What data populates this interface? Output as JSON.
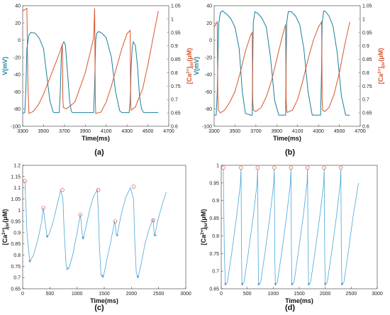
{
  "colors": {
    "voltage": "#1a7f9a",
    "calcium": "#d9542b",
    "ca_line": "#4aa6d8",
    "peak": "#e05050",
    "trough": "#2a5fd0",
    "axis": "#333333"
  },
  "panel_labels": [
    "(a)",
    "(b)",
    "(c)",
    "(d)"
  ],
  "chart_data": [
    {
      "type": "line",
      "xlabel": "Time(ms)",
      "ylabel_left": "V(mV)",
      "ylabel_right_parts": {
        "base": "[Ca",
        "sup": "2+",
        "mid": "]",
        "sub": "jsr",
        "unit": "(μM)"
      },
      "xlim": [
        3300,
        4700
      ],
      "ylim_left": [
        -100,
        40
      ],
      "ylim_right": [
        0.6,
        1.05
      ],
      "xticks": [
        3300,
        3500,
        3700,
        3900,
        4100,
        4300,
        4500,
        4700
      ],
      "yticks_left": [
        -100,
        -80,
        -60,
        -40,
        -20,
        0,
        20,
        40
      ],
      "yticks_right": [
        0.6,
        0.65,
        0.7,
        0.75,
        0.8,
        0.85,
        0.9,
        0.95,
        1,
        1.05
      ],
      "ytick_labels_right": [
        "0.6",
        "0.65",
        "0.7",
        "0.75",
        "0.8",
        "0.85",
        "0.9",
        "0.95",
        "1",
        "1.05"
      ],
      "series": [
        {
          "axis": "left",
          "x": [
            3300,
            3320,
            3330,
            3340,
            3360,
            3380,
            3420,
            3460,
            3500,
            3530,
            3560,
            3590,
            3600,
            3620,
            3650,
            3660,
            3670,
            3680,
            3695,
            3710,
            3725,
            3750,
            3765,
            3775,
            3785,
            3800,
            3830,
            3900,
            3950,
            3980,
            3990,
            4000,
            4010,
            4030,
            4060,
            4100,
            4150,
            4190,
            4230,
            4250,
            4290,
            4300,
            4320,
            4330,
            4340,
            4350,
            4360,
            4380,
            4400,
            4420,
            4440,
            4460,
            4480,
            4500,
            4550,
            4600
          ],
          "y": [
            -85,
            -84,
            -60,
            -10,
            6,
            9,
            8,
            2,
            -10,
            -40,
            -70,
            -83,
            -84,
            -84,
            -84,
            -60,
            -20,
            -5,
            -2,
            -6,
            -30,
            -70,
            -82,
            -84,
            -84,
            -84,
            -84,
            -84,
            -84,
            -84,
            -50,
            0,
            8,
            10,
            8,
            3,
            -20,
            -60,
            -82,
            -84,
            -84,
            -84,
            -84,
            -70,
            -30,
            -8,
            -2,
            -6,
            -30,
            -65,
            -80,
            -84,
            -84,
            -84,
            -84,
            -84
          ]
        },
        {
          "axis": "right",
          "x": [
            3300,
            3340,
            3350,
            3360,
            3400,
            3450,
            3500,
            3550,
            3600,
            3650,
            3680,
            3685,
            3690,
            3720,
            3800,
            3900,
            3950,
            3980,
            3990,
            3995,
            4000,
            4050,
            4100,
            4150,
            4200,
            4250,
            4300,
            4330,
            4335,
            4340,
            4380,
            4450,
            4500,
            4550,
            4600
          ],
          "y": [
            1.03,
            1.04,
            0.75,
            0.648,
            0.655,
            0.68,
            0.72,
            0.77,
            0.82,
            0.87,
            0.905,
            0.7,
            0.67,
            0.665,
            0.69,
            0.8,
            0.88,
            0.93,
            1.04,
            0.72,
            0.648,
            0.653,
            0.69,
            0.75,
            0.82,
            0.89,
            0.945,
            0.958,
            0.68,
            0.66,
            0.672,
            0.74,
            0.83,
            0.93,
            1.03
          ]
        }
      ]
    },
    {
      "type": "line",
      "xlabel": "Time(ms)",
      "ylabel_left": "V(mV)",
      "ylabel_right_parts": {
        "base": "[Ca",
        "sup": "2+",
        "mid": "]",
        "sub": "jsr",
        "unit": "(μM)"
      },
      "xlim": [
        3300,
        4700
      ],
      "ylim_left": [
        -100,
        40
      ],
      "ylim_right": [
        0.6,
        1.05
      ],
      "xticks": [
        3300,
        3500,
        3700,
        3900,
        4100,
        4300,
        4500,
        4700
      ],
      "yticks_left": [
        -100,
        -80,
        -60,
        -40,
        -20,
        0,
        20,
        40
      ],
      "yticks_right": [
        0.6,
        0.65,
        0.7,
        0.75,
        0.8,
        0.85,
        0.9,
        0.95,
        1,
        1.05
      ],
      "ytick_labels_right": [
        "0.6",
        "0.65",
        "0.7",
        "0.75",
        "0.8",
        "0.85",
        "0.9",
        "0.95",
        "1",
        "1.05"
      ],
      "series": [
        {
          "axis": "left",
          "x": [
            3300,
            3320,
            3330,
            3340,
            3345,
            3360,
            3380,
            3420,
            3460,
            3500,
            3540,
            3570,
            3600,
            3650,
            3665,
            3670,
            3675,
            3690,
            3720,
            3760,
            3800,
            3840,
            3880,
            3920,
            3960,
            3985,
            3990,
            3995,
            4010,
            4040,
            4080,
            4120,
            4160,
            4200,
            4240,
            4280,
            4310,
            4320,
            4330,
            4335,
            4350,
            4370,
            4400,
            4440,
            4480,
            4520,
            4560,
            4600
          ],
          "y": [
            -87,
            -87,
            -60,
            0,
            20,
            32,
            34,
            30,
            25,
            15,
            -10,
            -60,
            -85,
            -87,
            -87,
            -30,
            20,
            33,
            31,
            25,
            15,
            -20,
            -70,
            -87,
            -87,
            -87,
            -30,
            20,
            33,
            33,
            28,
            18,
            -10,
            -60,
            -87,
            -87,
            -87,
            -87,
            -30,
            20,
            34,
            33,
            28,
            16,
            -15,
            -65,
            -87,
            -87
          ]
        },
        {
          "axis": "right",
          "x": [
            3300,
            3330,
            3335,
            3340,
            3360,
            3400,
            3450,
            3500,
            3550,
            3600,
            3650,
            3665,
            3670,
            3675,
            3700,
            3750,
            3800,
            3850,
            3900,
            3950,
            3985,
            3990,
            3995,
            4000,
            4050,
            4100,
            4150,
            4200,
            4250,
            4300,
            4330,
            4335,
            4340,
            4360,
            4400,
            4450,
            4500,
            4550,
            4600
          ],
          "y": [
            0.97,
            0.99,
            0.72,
            0.66,
            0.65,
            0.66,
            0.69,
            0.73,
            0.8,
            0.88,
            0.94,
            0.95,
            0.7,
            0.66,
            0.655,
            0.67,
            0.71,
            0.77,
            0.85,
            0.93,
            0.98,
            0.7,
            0.66,
            0.652,
            0.66,
            0.7,
            0.77,
            0.85,
            0.92,
            0.97,
            0.99,
            0.7,
            0.66,
            0.655,
            0.67,
            0.72,
            0.8,
            0.9,
            0.99
          ]
        }
      ]
    },
    {
      "type": "line",
      "xlabel": "Time(ms)",
      "ylabel_parts": {
        "base": "[Ca",
        "sup": "2+",
        "mid": "]",
        "sub": "jsr",
        "unit": "(μM)"
      },
      "xlim": [
        0,
        3000
      ],
      "ylim": [
        0.65,
        1.2
      ],
      "xticks": [
        0,
        500,
        1000,
        1500,
        2000,
        2500,
        3000
      ],
      "yticks": [
        0.65,
        0.7,
        0.75,
        0.8,
        0.85,
        0.9,
        0.95,
        1,
        1.05,
        1.1,
        1.15,
        1.2
      ],
      "ytick_labels": [
        "0.65",
        "0.7",
        "0.75",
        "0.8",
        "0.85",
        "0.9",
        "0.95",
        "1",
        "1.05",
        "1.1",
        "1.15",
        "1.2"
      ],
      "series": [
        {
          "x": [
            40,
            80,
            130,
            200,
            280,
            350,
            380,
            410,
            450,
            480,
            550,
            630,
            700,
            740,
            760,
            800,
            850,
            920,
            1000,
            1060,
            1075,
            1090,
            1110,
            1160,
            1230,
            1300,
            1370,
            1390,
            1410,
            1440,
            1480,
            1550,
            1620,
            1690,
            1710,
            1720,
            1740,
            1770,
            1830,
            1900,
            1980,
            2040,
            2060,
            2090,
            2120,
            2170,
            2250,
            2330,
            2400,
            2415,
            2420,
            2440,
            2480,
            2560,
            2640
          ],
          "y": [
            1.13,
            0.9,
            0.77,
            0.8,
            0.87,
            0.95,
            1.01,
            0.95,
            0.88,
            0.89,
            0.94,
            1.02,
            1.09,
            1.05,
            0.92,
            0.75,
            0.74,
            0.8,
            0.9,
            0.98,
            0.95,
            0.9,
            0.87,
            0.92,
            1.0,
            1.06,
            1.09,
            1.0,
            0.85,
            0.71,
            0.7,
            0.78,
            0.86,
            0.95,
            0.92,
            0.89,
            0.89,
            0.93,
            1.0,
            1.06,
            1.1,
            1.05,
            0.88,
            0.72,
            0.7,
            0.75,
            0.85,
            0.92,
            0.96,
            0.9,
            0.885,
            0.9,
            0.95,
            1.02,
            1.08
          ]
        }
      ],
      "peaks": {
        "x": [
          40,
          380,
          730,
          1060,
          1390,
          1700,
          2040,
          2400
        ],
        "y": [
          1.13,
          1.01,
          1.09,
          0.98,
          1.09,
          0.95,
          1.105,
          0.955
        ]
      },
      "troughs": {
        "x": [
          130,
          450,
          820,
          1110,
          1470,
          1740,
          2120,
          2440
        ],
        "y": [
          0.77,
          0.88,
          0.735,
          0.875,
          0.705,
          0.885,
          0.7,
          0.885
        ]
      }
    },
    {
      "type": "line",
      "xlabel": "Time(ms)",
      "ylabel_parts": {
        "base": "[Ca",
        "sup": "2+",
        "mid": "]",
        "sub": "jsr",
        "unit": "(μM)"
      },
      "xlim": [
        0,
        3000
      ],
      "ylim": [
        0.65,
        1.0
      ],
      "xticks": [
        0,
        500,
        1000,
        1500,
        2000,
        2500,
        3000
      ],
      "yticks": [
        0.65,
        0.7,
        0.75,
        0.8,
        0.85,
        0.9,
        0.95,
        1
      ],
      "ytick_labels": [
        "0.65",
        "0.7",
        "0.75",
        "0.8",
        "0.85",
        "0.9",
        "0.95",
        "1"
      ],
      "series": [
        {
          "x": [
            40,
            60,
            80,
            120,
            200,
            300,
            370,
            380,
            390,
            400,
            440,
            520,
            620,
            690,
            700,
            710,
            720,
            760,
            840,
            940,
            1010,
            1020,
            1030,
            1040,
            1080,
            1160,
            1260,
            1330,
            1340,
            1350,
            1360,
            1400,
            1480,
            1580,
            1650,
            1660,
            1670,
            1680,
            1720,
            1800,
            1900,
            1970,
            1980,
            1990,
            2000,
            2040,
            2120,
            2220,
            2290,
            2300,
            2310,
            2320,
            2360,
            2440,
            2540,
            2640
          ],
          "y": [
            0.99,
            0.75,
            0.66,
            0.67,
            0.75,
            0.86,
            0.95,
            0.99,
            0.75,
            0.66,
            0.67,
            0.75,
            0.86,
            0.95,
            0.99,
            0.75,
            0.66,
            0.67,
            0.75,
            0.86,
            0.95,
            0.99,
            0.75,
            0.66,
            0.67,
            0.75,
            0.86,
            0.95,
            0.99,
            0.75,
            0.66,
            0.67,
            0.75,
            0.86,
            0.95,
            0.99,
            0.75,
            0.66,
            0.67,
            0.75,
            0.86,
            0.95,
            0.99,
            0.75,
            0.66,
            0.67,
            0.75,
            0.86,
            0.95,
            0.99,
            0.75,
            0.66,
            0.67,
            0.75,
            0.86,
            0.95
          ]
        }
      ],
      "peaks": {
        "x": [
          40,
          380,
          700,
          1020,
          1340,
          1660,
          1980,
          2300
        ],
        "y": [
          0.993,
          0.993,
          0.993,
          0.993,
          0.993,
          0.993,
          0.993,
          0.993
        ]
      },
      "troughs": {
        "x": [
          80,
          400,
          720,
          1040,
          1360,
          1680,
          2000,
          2320
        ],
        "y": [
          0.662,
          0.662,
          0.662,
          0.662,
          0.662,
          0.662,
          0.662,
          0.662
        ]
      }
    }
  ]
}
